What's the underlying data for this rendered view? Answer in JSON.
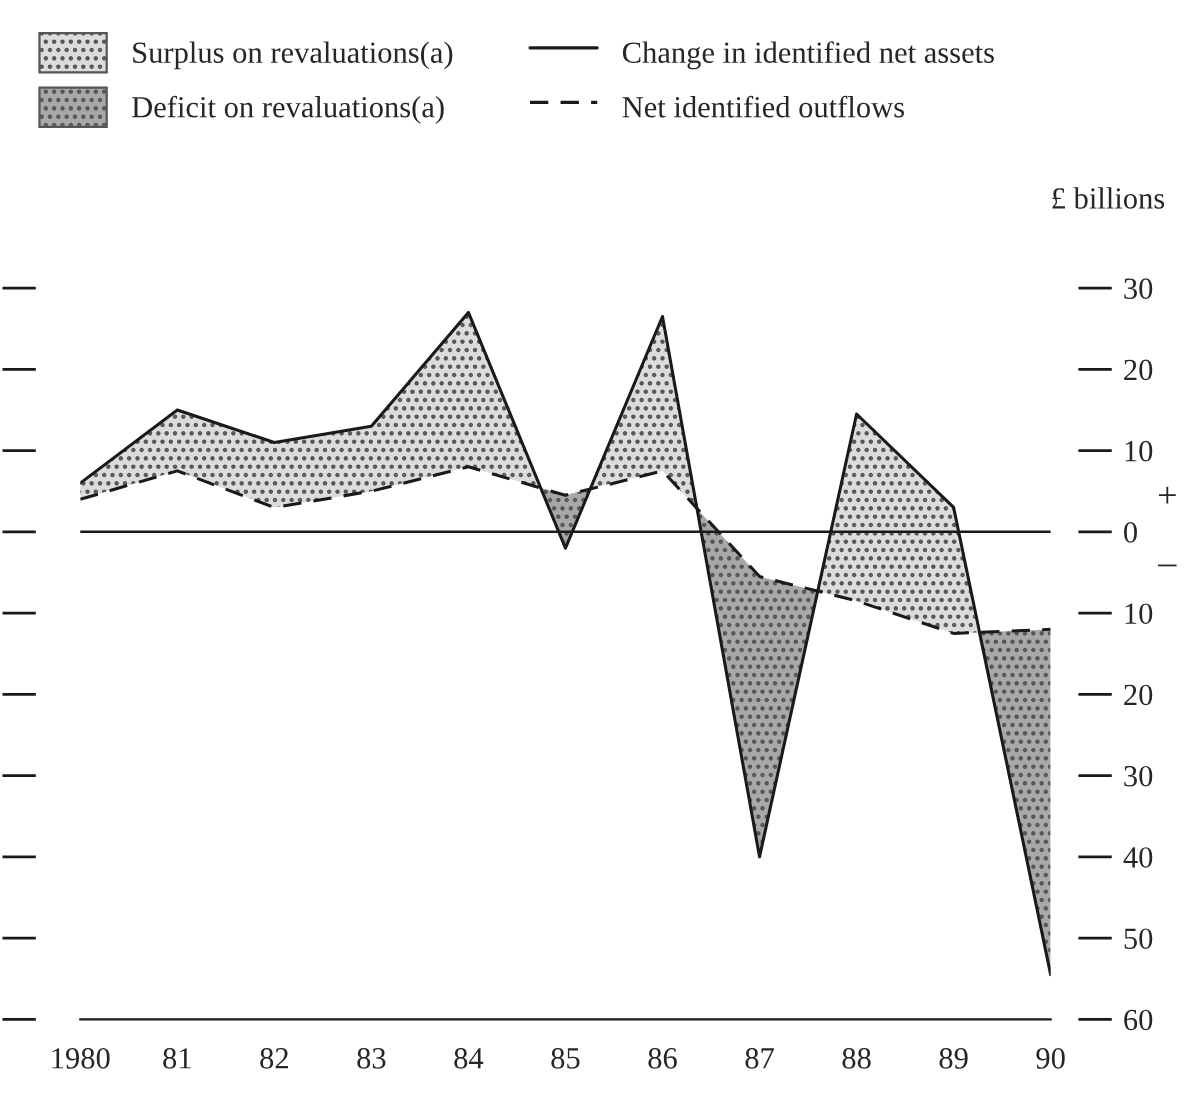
{
  "chart_data": {
    "type": "line",
    "ylabel": "£ billions",
    "x": [
      1980,
      1981,
      1982,
      1983,
      1984,
      1985,
      1986,
      1987,
      1988,
      1989,
      1990
    ],
    "xlim": [
      1980,
      1990
    ],
    "xticks": [
      {
        "value": 1980,
        "label": "1980"
      },
      {
        "value": 1981,
        "label": "81"
      },
      {
        "value": 1982,
        "label": "82"
      },
      {
        "value": 1983,
        "label": "83"
      },
      {
        "value": 1984,
        "label": "84"
      },
      {
        "value": 1985,
        "label": "85"
      },
      {
        "value": 1986,
        "label": "86"
      },
      {
        "value": 1987,
        "label": "87"
      },
      {
        "value": 1988,
        "label": "88"
      },
      {
        "value": 1989,
        "label": "89"
      },
      {
        "value": 1990,
        "label": "90"
      }
    ],
    "ylim": [
      -60,
      30
    ],
    "yticks": [
      30,
      20,
      10,
      0,
      {
        "value": -10,
        "label": "10"
      },
      {
        "value": -20,
        "label": "20"
      },
      {
        "value": -30,
        "label": "30"
      },
      {
        "value": -40,
        "label": "40"
      },
      {
        "value": -50,
        "label": "50"
      },
      {
        "value": -60,
        "label": "60"
      }
    ],
    "series": [
      {
        "name": "Change in identified net assets",
        "color": "#1a1a1a",
        "line_style": "solid",
        "values": [
          6,
          15,
          11,
          13,
          27,
          -2,
          26.5,
          -40,
          14.5,
          3,
          -54.5
        ]
      },
      {
        "name": "Net identified outflows",
        "color": "#1a1a1a",
        "line_style": "dashed",
        "values": [
          4,
          7.5,
          3,
          5,
          8,
          4.5,
          7.5,
          -5.5,
          -8.5,
          -12.5,
          -12
        ]
      },
      {
        "name": "Surplus on revaluations(a)",
        "type": "area",
        "color": "#dcdcdc",
        "x": [
          1980,
          1981,
          1982,
          1983,
          1984,
          1984.75,
          1984,
          1983,
          1982,
          1981,
          1980
        ],
        "values": [
          6,
          15,
          11,
          13,
          27,
          5.4,
          8,
          5,
          3,
          7.5,
          4
        ]
      },
      {
        "name": "Deficit on revaluations(a)",
        "type": "area",
        "color": "#a8a8a8",
        "x": [
          1984.75,
          1985,
          1985.25,
          1985
        ],
        "values": [
          5.4,
          4.5,
          5.3,
          -2
        ]
      },
      {
        "type": "area",
        "color": "#dcdcdc",
        "x": [
          1985.25,
          1986,
          1986.35,
          1986
        ],
        "values": [
          5.3,
          26.5,
          2.9,
          7.5
        ]
      },
      {
        "type": "area",
        "color": "#a8a8a8",
        "x": [
          1986.35,
          1987,
          1987.6,
          1987
        ],
        "values": [
          2.9,
          -5.5,
          -7.3,
          -40
        ]
      },
      {
        "type": "area",
        "color": "#dcdcdc",
        "x": [
          1987.6,
          1988,
          1989,
          1989.25,
          1989,
          1988
        ],
        "values": [
          -7.3,
          14.5,
          3,
          -12.4,
          -12.5,
          -8.5
        ]
      },
      {
        "type": "area",
        "color": "#a8a8a8",
        "x": [
          1989.25,
          1990,
          1990
        ],
        "values": [
          -12.4,
          -12,
          -54.5
        ]
      }
    ],
    "ref_lines": [
      {
        "axis": "y",
        "value": 0,
        "color": "#1a1a1a"
      }
    ],
    "annotations": [
      "+",
      "–"
    ],
    "legend": "top left",
    "grid": false
  }
}
